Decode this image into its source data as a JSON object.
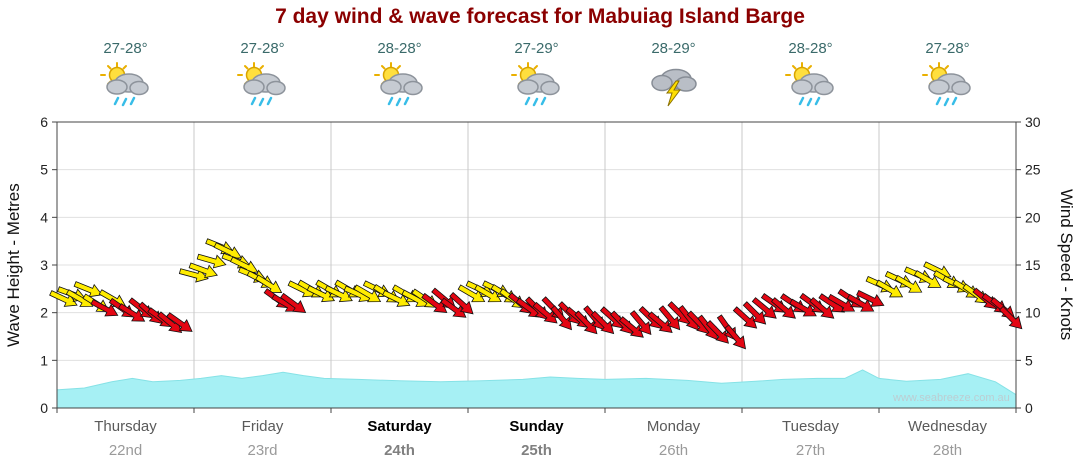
{
  "title": "7 day wind & wave forecast for Mabuiag Island Barge",
  "watermark": "www.seabreeze.com.au",
  "left_axis": {
    "label": "Wave Height - Metres",
    "ticks": [
      0,
      1,
      2,
      3,
      4,
      5,
      6
    ]
  },
  "right_axis": {
    "label": "Wind Speed - Knots",
    "ticks": [
      0,
      5,
      10,
      15,
      20,
      25,
      30
    ]
  },
  "colors": {
    "title": "#8b0000",
    "wave_fill": "#a6f0f4",
    "wave_edge": "#86e2e6",
    "arrow_yellow": "#ffec00",
    "arrow_red": "#e30613",
    "grid": "#e0e0e0",
    "day_separator": "#c8c8c8",
    "axis": "#444444"
  },
  "days": [
    {
      "name": "Thursday",
      "date": "22nd",
      "temp": "27-28°",
      "icon": "sun-cloud-rain",
      "weekend": false
    },
    {
      "name": "Friday",
      "date": "23rd",
      "temp": "27-28°",
      "icon": "sun-cloud-rain",
      "weekend": false
    },
    {
      "name": "Saturday",
      "date": "24th",
      "temp": "28-28°",
      "icon": "sun-cloud-rain",
      "weekend": true
    },
    {
      "name": "Sunday",
      "date": "25th",
      "temp": "27-29°",
      "icon": "sun-cloud-rain",
      "weekend": true
    },
    {
      "name": "Monday",
      "date": "26th",
      "temp": "28-29°",
      "icon": "storm",
      "weekend": false
    },
    {
      "name": "Tuesday",
      "date": "27th",
      "temp": "28-28°",
      "icon": "sun-cloud-rain",
      "weekend": false
    },
    {
      "name": "Wednesday",
      "date": "28th",
      "temp": "27-28°",
      "icon": "sun-cloud-rain",
      "weekend": false
    }
  ],
  "chart_data": [
    {
      "type": "area",
      "name": "Wave Height",
      "ylabel": "Wave Height - Metres",
      "ylim": [
        0,
        6
      ],
      "x_unit": "days (0 = start Thursday)",
      "points": [
        [
          0,
          0.38
        ],
        [
          0.2,
          0.42
        ],
        [
          0.4,
          0.55
        ],
        [
          0.55,
          0.62
        ],
        [
          0.7,
          0.55
        ],
        [
          0.9,
          0.58
        ],
        [
          1.05,
          0.62
        ],
        [
          1.2,
          0.68
        ],
        [
          1.35,
          0.62
        ],
        [
          1.5,
          0.68
        ],
        [
          1.65,
          0.75
        ],
        [
          1.8,
          0.68
        ],
        [
          1.95,
          0.62
        ],
        [
          2.2,
          0.6
        ],
        [
          2.5,
          0.57
        ],
        [
          2.8,
          0.55
        ],
        [
          3.1,
          0.57
        ],
        [
          3.4,
          0.6
        ],
        [
          3.6,
          0.65
        ],
        [
          3.8,
          0.62
        ],
        [
          4.0,
          0.6
        ],
        [
          4.3,
          0.62
        ],
        [
          4.6,
          0.58
        ],
        [
          4.85,
          0.52
        ],
        [
          5.1,
          0.56
        ],
        [
          5.3,
          0.6
        ],
        [
          5.55,
          0.62
        ],
        [
          5.75,
          0.62
        ],
        [
          5.88,
          0.8
        ],
        [
          6.0,
          0.62
        ],
        [
          6.2,
          0.56
        ],
        [
          6.45,
          0.6
        ],
        [
          6.65,
          0.72
        ],
        [
          6.85,
          0.55
        ],
        [
          7.0,
          0.28
        ]
      ]
    },
    {
      "type": "scatter",
      "name": "Wind Speed (direction arrows)",
      "ylabel": "Wind Speed - Knots",
      "ylim": [
        0,
        30
      ],
      "point_format": [
        "day_t",
        "knots",
        "arrow_angle_deg_cw_from_east",
        "color_key"
      ],
      "color_map": {
        "y": "#ffec00",
        "r": "#e30613"
      },
      "points": [
        [
          0.04,
          11.5,
          25,
          "y"
        ],
        [
          0.1,
          12,
          20,
          "y"
        ],
        [
          0.16,
          11.5,
          30,
          "y"
        ],
        [
          0.22,
          12.5,
          22,
          "y"
        ],
        [
          0.28,
          11,
          32,
          "y"
        ],
        [
          0.34,
          10.5,
          28,
          "r"
        ],
        [
          0.4,
          11.5,
          30,
          "y"
        ],
        [
          0.47,
          10.5,
          35,
          "r"
        ],
        [
          0.54,
          10,
          32,
          "r"
        ],
        [
          0.61,
          10.5,
          38,
          "r"
        ],
        [
          0.68,
          10,
          42,
          "r"
        ],
        [
          0.75,
          9.5,
          36,
          "r"
        ],
        [
          0.82,
          9,
          40,
          "r"
        ],
        [
          0.89,
          9,
          35,
          "r"
        ],
        [
          0.99,
          14,
          15,
          "y"
        ],
        [
          1.06,
          14.5,
          20,
          "y"
        ],
        [
          1.12,
          15.5,
          16,
          "y"
        ],
        [
          1.18,
          17,
          22,
          "y"
        ],
        [
          1.24,
          16.5,
          26,
          "y"
        ],
        [
          1.3,
          15.5,
          20,
          "y"
        ],
        [
          1.36,
          15,
          26,
          "y"
        ],
        [
          1.42,
          14,
          22,
          "y"
        ],
        [
          1.48,
          13.5,
          28,
          "y"
        ],
        [
          1.54,
          13,
          32,
          "y"
        ],
        [
          1.6,
          11.5,
          36,
          "r"
        ],
        [
          1.66,
          11,
          30,
          "r"
        ],
        [
          1.72,
          11,
          36,
          "r"
        ],
        [
          1.78,
          12.5,
          26,
          "y"
        ],
        [
          1.85,
          12.5,
          30,
          "y"
        ],
        [
          1.92,
          12,
          26,
          "y"
        ],
        [
          1.98,
          12.5,
          30,
          "y"
        ],
        [
          2.05,
          12,
          26,
          "y"
        ],
        [
          2.12,
          12.5,
          30,
          "y"
        ],
        [
          2.19,
          12,
          24,
          "y"
        ],
        [
          2.26,
          12,
          30,
          "y"
        ],
        [
          2.33,
          12.5,
          26,
          "y"
        ],
        [
          2.4,
          12,
          32,
          "y"
        ],
        [
          2.47,
          11.5,
          26,
          "y"
        ],
        [
          2.54,
          12,
          30,
          "y"
        ],
        [
          2.61,
          11.5,
          28,
          "y"
        ],
        [
          2.68,
          11.5,
          34,
          "y"
        ],
        [
          2.75,
          11,
          36,
          "r"
        ],
        [
          2.82,
          11.5,
          40,
          "r"
        ],
        [
          2.89,
          10.5,
          36,
          "r"
        ],
        [
          2.95,
          11,
          42,
          "r"
        ],
        [
          3.02,
          12,
          30,
          "y"
        ],
        [
          3.08,
          12.5,
          25,
          "y"
        ],
        [
          3.14,
          12,
          30,
          "y"
        ],
        [
          3.2,
          12.5,
          26,
          "y"
        ],
        [
          3.26,
          12,
          32,
          "y"
        ],
        [
          3.32,
          11.5,
          36,
          "y"
        ],
        [
          3.38,
          11,
          40,
          "r"
        ],
        [
          3.44,
          10.5,
          36,
          "r"
        ],
        [
          3.5,
          10.5,
          45,
          "r"
        ],
        [
          3.56,
          10,
          40,
          "r"
        ],
        [
          3.62,
          10.5,
          46,
          "r"
        ],
        [
          3.68,
          9.5,
          50,
          "r"
        ],
        [
          3.74,
          10,
          45,
          "r"
        ],
        [
          3.8,
          9.5,
          40,
          "r"
        ],
        [
          3.86,
          9,
          46,
          "r"
        ],
        [
          3.92,
          9.5,
          50,
          "r"
        ],
        [
          3.98,
          9,
          45,
          "r"
        ],
        [
          4.05,
          9.5,
          42,
          "r"
        ],
        [
          4.12,
          9,
          46,
          "r"
        ],
        [
          4.19,
          8.5,
          40,
          "r"
        ],
        [
          4.26,
          9,
          50,
          "r"
        ],
        [
          4.33,
          9.5,
          44,
          "r"
        ],
        [
          4.4,
          9,
          40,
          "r"
        ],
        [
          4.47,
          9.5,
          50,
          "r"
        ],
        [
          4.54,
          10,
          45,
          "r"
        ],
        [
          4.61,
          9.5,
          52,
          "r"
        ],
        [
          4.68,
          9,
          46,
          "r"
        ],
        [
          4.75,
          8.5,
          52,
          "r"
        ],
        [
          4.82,
          8,
          46,
          "r"
        ],
        [
          4.89,
          8.5,
          55,
          "r"
        ],
        [
          4.95,
          7.5,
          50,
          "r"
        ],
        [
          5.02,
          9.5,
          42,
          "r"
        ],
        [
          5.09,
          10,
          45,
          "r"
        ],
        [
          5.16,
          10.5,
          40,
          "r"
        ],
        [
          5.23,
          11,
          35,
          "r"
        ],
        [
          5.3,
          10.5,
          40,
          "r"
        ],
        [
          5.37,
          11,
          34,
          "r"
        ],
        [
          5.44,
          10.5,
          30,
          "r"
        ],
        [
          5.51,
          11,
          36,
          "r"
        ],
        [
          5.58,
          10.5,
          40,
          "r"
        ],
        [
          5.65,
          11,
          34,
          "r"
        ],
        [
          5.72,
          11,
          30,
          "r"
        ],
        [
          5.79,
          11.5,
          34,
          "r"
        ],
        [
          5.86,
          11,
          30,
          "r"
        ],
        [
          5.93,
          11.5,
          26,
          "r"
        ],
        [
          6.0,
          13,
          24,
          "y"
        ],
        [
          6.07,
          12.5,
          30,
          "y"
        ],
        [
          6.14,
          13.5,
          25,
          "y"
        ],
        [
          6.21,
          13,
          30,
          "y"
        ],
        [
          6.28,
          14,
          24,
          "y"
        ],
        [
          6.35,
          13.5,
          30,
          "y"
        ],
        [
          6.42,
          14.5,
          26,
          "y"
        ],
        [
          6.49,
          13.5,
          30,
          "y"
        ],
        [
          6.56,
          13,
          26,
          "y"
        ],
        [
          6.63,
          12.5,
          32,
          "y"
        ],
        [
          6.7,
          12,
          36,
          "y"
        ],
        [
          6.77,
          11.5,
          40,
          "r"
        ],
        [
          6.84,
          11,
          36,
          "r"
        ],
        [
          6.9,
          10.5,
          40,
          "r"
        ],
        [
          6.96,
          9.5,
          45,
          "r"
        ]
      ]
    }
  ]
}
